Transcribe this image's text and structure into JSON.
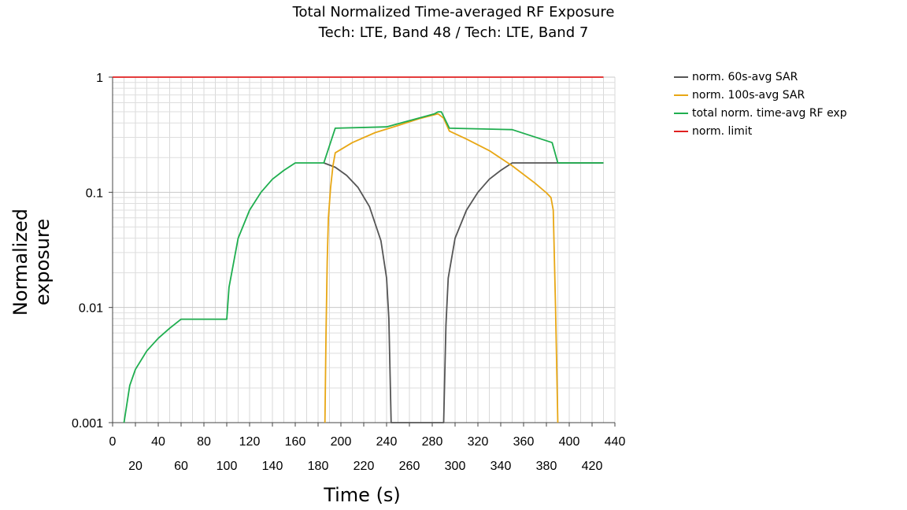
{
  "chart_data": {
    "type": "line",
    "title": "Total Normalized Time-averaged RF Exposure",
    "subtitle": "Tech: LTE, Band 48 / Tech: LTE, Band 7",
    "xlabel": "Time (s)",
    "ylabel": "Normalized exposure",
    "xlim": [
      0,
      440
    ],
    "ylim": [
      0.001,
      1
    ],
    "yscale": "log",
    "grid": true,
    "legend_position": "right",
    "x_ticks_top_row": [
      "0",
      "40",
      "80",
      "120",
      "160",
      "200",
      "240",
      "280",
      "320",
      "360",
      "400",
      "440"
    ],
    "x_ticks_bottom_row": [
      "20",
      "60",
      "100",
      "140",
      "180",
      "220",
      "260",
      "300",
      "340",
      "380",
      "420"
    ],
    "y_ticks": [
      "0.001",
      "0.01",
      "0.1",
      "1"
    ],
    "series": [
      {
        "name": "norm. 60s-avg SAR",
        "color": "#555555",
        "x": [
          185,
          195,
          205,
          215,
          225,
          235,
          240,
          242,
          244,
          290,
          292,
          294,
          300,
          310,
          320,
          330,
          340,
          350,
          430
        ],
        "y": [
          0.18,
          0.165,
          0.14,
          0.11,
          0.075,
          0.038,
          0.018,
          0.008,
          0.001,
          0.001,
          0.007,
          0.018,
          0.04,
          0.07,
          0.1,
          0.13,
          0.155,
          0.18,
          0.18
        ]
      },
      {
        "name": "norm. 100s-avg SAR",
        "color": "#e8a715",
        "x": [
          186,
          187,
          188,
          189,
          191,
          193,
          195,
          210,
          230,
          250,
          270,
          285,
          290,
          295,
          310,
          330,
          350,
          370,
          380,
          384,
          386,
          388,
          390
        ],
        "y": [
          0.001,
          0.006,
          0.025,
          0.06,
          0.11,
          0.17,
          0.22,
          0.27,
          0.33,
          0.38,
          0.44,
          0.48,
          0.44,
          0.34,
          0.29,
          0.23,
          0.17,
          0.12,
          0.099,
          0.09,
          0.07,
          0.01,
          0.001
        ]
      },
      {
        "name": "total norm. time-avg RF exp",
        "color": "#1fae4f",
        "x": [
          10,
          15,
          20,
          30,
          40,
          50,
          60,
          100,
          102,
          110,
          120,
          130,
          140,
          150,
          160,
          185,
          195,
          240,
          282,
          285,
          288,
          295,
          350,
          385,
          390,
          430
        ],
        "y": [
          0.001,
          0.0021,
          0.0029,
          0.0042,
          0.0054,
          0.0066,
          0.0079,
          0.0079,
          0.015,
          0.04,
          0.07,
          0.1,
          0.13,
          0.155,
          0.18,
          0.18,
          0.36,
          0.37,
          0.48,
          0.5,
          0.5,
          0.36,
          0.35,
          0.27,
          0.18,
          0.18
        ]
      },
      {
        "name": "norm. limit",
        "color": "#e02020",
        "x": [
          0,
          430
        ],
        "y": [
          1,
          1
        ]
      }
    ]
  }
}
